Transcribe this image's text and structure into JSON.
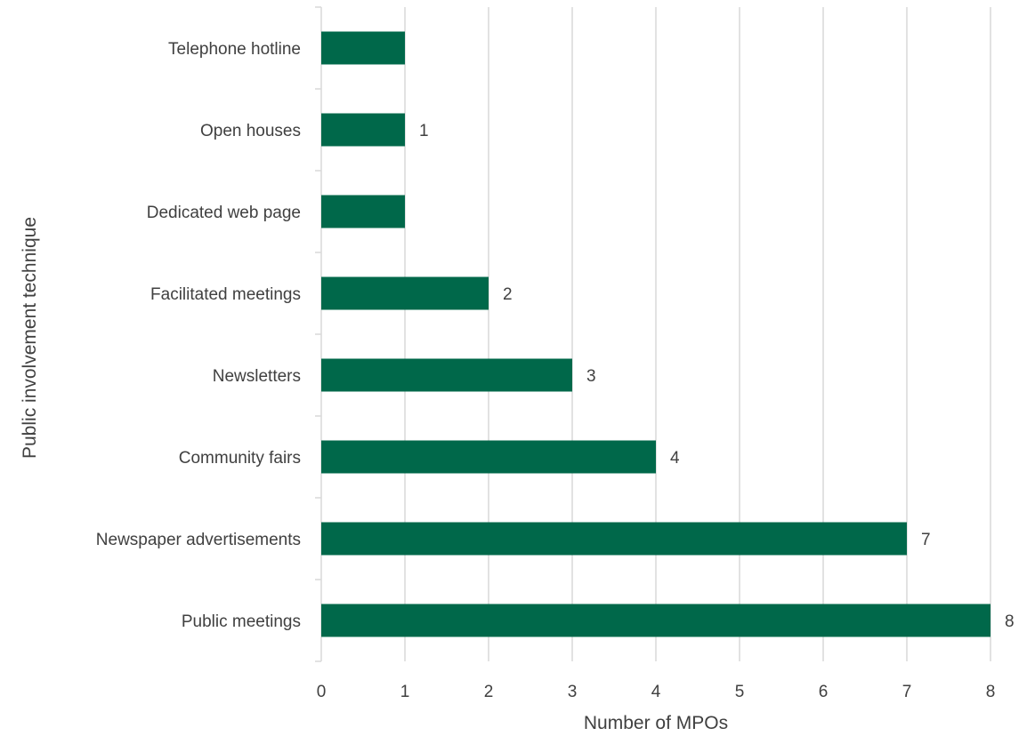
{
  "chart_data": {
    "type": "bar",
    "orientation": "horizontal",
    "categories": [
      "Telephone hotline",
      "Open houses",
      "Dedicated web page",
      "Facilitated meetings",
      "Newsletters",
      "Community fairs",
      "Newspaper advertisements",
      "Public meetings"
    ],
    "values": [
      1,
      1,
      1,
      2,
      3,
      4,
      7,
      8
    ],
    "data_labels": [
      "",
      "1",
      "",
      "2",
      "3",
      "4",
      "7",
      "8"
    ],
    "xlabel": "Number of MPOs",
    "ylabel": "Public involvement technique",
    "xlim": [
      0,
      8
    ],
    "xticks": [
      "0",
      "1",
      "2",
      "3",
      "4",
      "5",
      "6",
      "7",
      "8"
    ],
    "grid": true,
    "legend": "none",
    "bar_color": "#00684a",
    "gridline_color": "#d9d9d9",
    "text_color": "#404040"
  }
}
